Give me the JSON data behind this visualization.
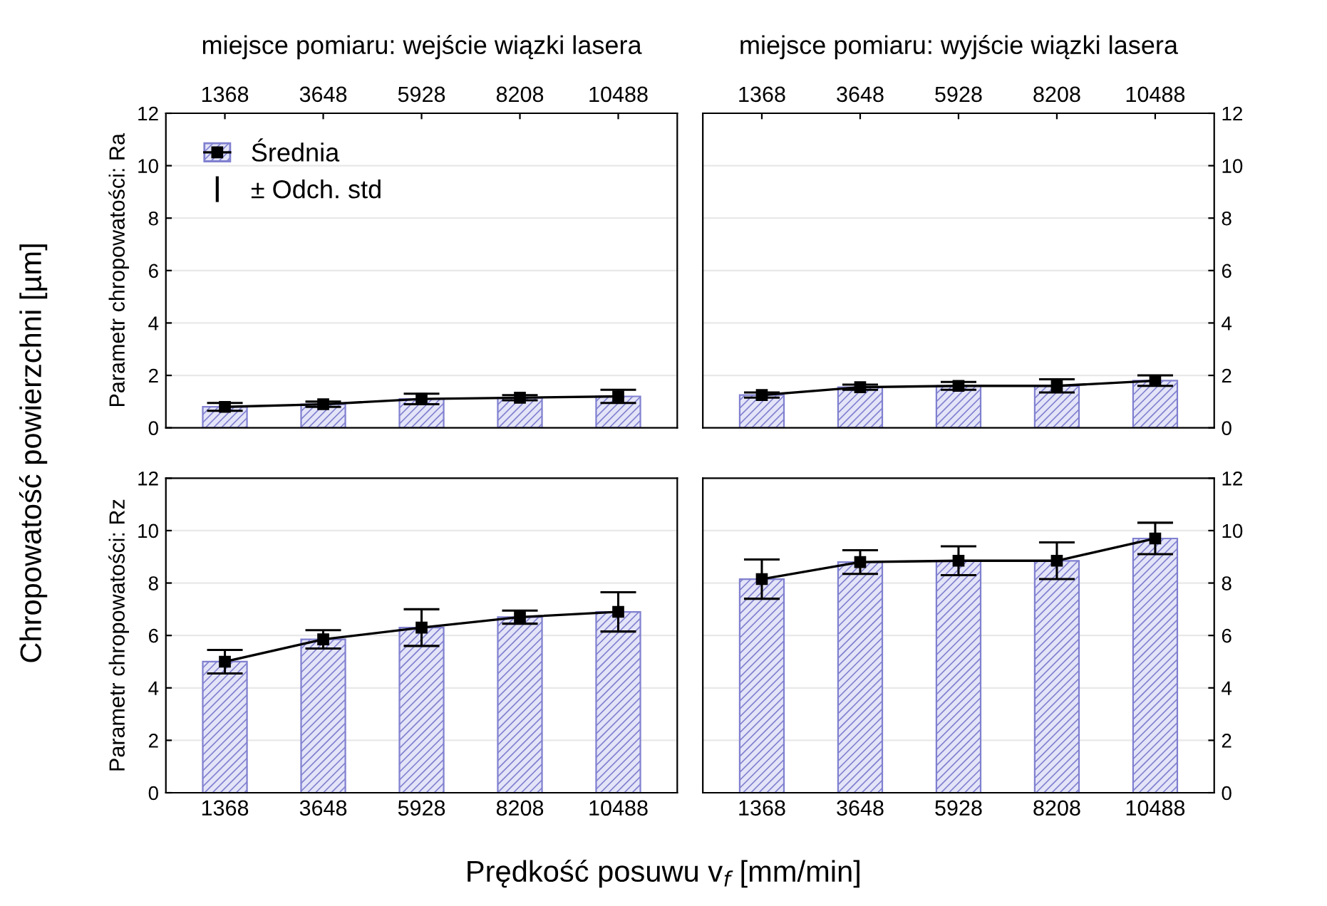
{
  "chart_data": [
    {
      "type": "bar",
      "title": "miejsce pomiaru: wejście wiązki lasera",
      "ylabel": "Parametr chropowatości: Ra",
      "categories": [
        "1368",
        "3648",
        "5928",
        "8208",
        "10488"
      ],
      "ylim": [
        0,
        12
      ],
      "yticks": [
        0,
        2,
        4,
        6,
        8,
        10,
        12
      ],
      "grid": "y",
      "legend": "top left",
      "annotations": [
        "Chropowatość powierzchni [µm]",
        "± Odch. std"
      ],
      "series": [
        {
          "color": "#8080d0",
          "values": [
            0.8,
            0.9,
            1.1,
            1.15,
            1.2
          ]
        },
        {
          "type": "line",
          "name": "Średnia",
          "color": "#000000",
          "marker": "square",
          "values": [
            0.8,
            0.9,
            1.1,
            1.15,
            1.2
          ],
          "errors": [
            0.15,
            0.1,
            0.2,
            0.1,
            0.25
          ]
        }
      ]
    },
    {
      "type": "bar",
      "title": "miejsce pomiaru: wyjście wiązki lasera",
      "categories": [
        "1368",
        "3648",
        "5928",
        "8208",
        "10488"
      ],
      "ylim": [
        0,
        12
      ],
      "yticks": [
        0,
        2,
        4,
        6,
        8,
        10,
        12
      ],
      "grid": "y",
      "series": [
        {
          "color": "#8080d0",
          "values": [
            1.25,
            1.55,
            1.6,
            1.6,
            1.8
          ]
        },
        {
          "type": "line",
          "color": "#000000",
          "marker": "square",
          "values": [
            1.25,
            1.55,
            1.6,
            1.6,
            1.8
          ],
          "errors": [
            0.1,
            0.1,
            0.15,
            0.25,
            0.2
          ]
        }
      ]
    },
    {
      "type": "bar",
      "ylabel": "Parametr chropowatości: Rz",
      "categories": [
        "1368",
        "3648",
        "5928",
        "8208",
        "10488"
      ],
      "ylim": [
        0,
        12
      ],
      "yticks": [
        0,
        2,
        4,
        6,
        8,
        10,
        12
      ],
      "grid": "y",
      "annotations": [
        "Prędkość posuwu v$_{f}$ [mm/min]"
      ],
      "series": [
        {
          "color": "#8080d0",
          "values": [
            5.0,
            5.85,
            6.3,
            6.7,
            6.9
          ]
        },
        {
          "type": "line",
          "color": "#000000",
          "marker": "square",
          "values": [
            5.0,
            5.85,
            6.3,
            6.7,
            6.9
          ],
          "errors": [
            0.45,
            0.35,
            0.7,
            0.25,
            0.75
          ]
        }
      ]
    },
    {
      "type": "bar",
      "categories": [
        "1368",
        "3648",
        "5928",
        "8208",
        "10488"
      ],
      "ylim": [
        0,
        12
      ],
      "yticks": [
        0,
        2,
        4,
        6,
        8,
        10,
        12
      ],
      "grid": "y",
      "series": [
        {
          "color": "#8080d0",
          "values": [
            8.15,
            8.8,
            8.85,
            8.85,
            9.7
          ]
        },
        {
          "type": "line",
          "color": "#000000",
          "marker": "square",
          "values": [
            8.15,
            8.8,
            8.85,
            8.85,
            9.7
          ],
          "errors": [
            0.75,
            0.45,
            0.55,
            0.7,
            0.6
          ]
        }
      ]
    }
  ]
}
